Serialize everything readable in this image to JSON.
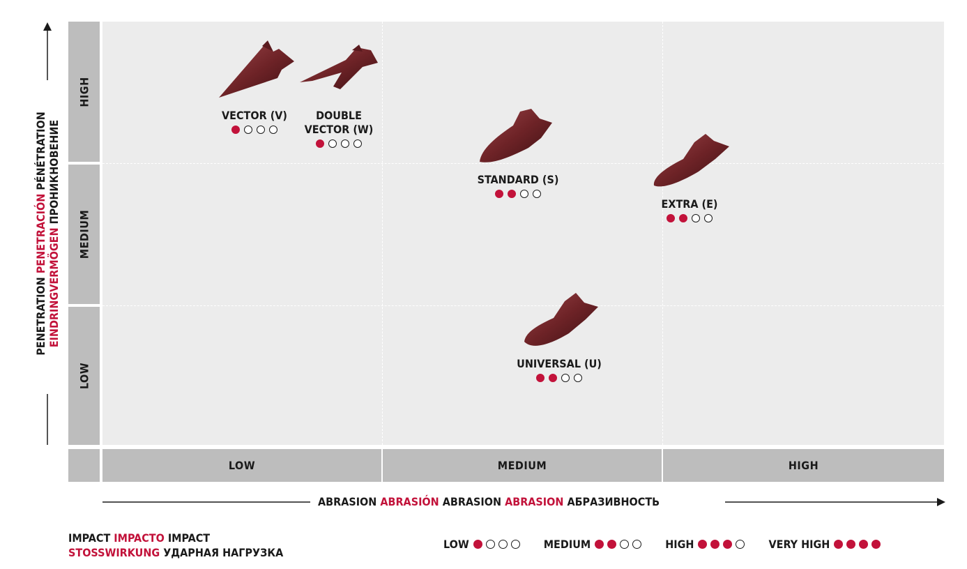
{
  "chart_data": {
    "type": "scatter",
    "title": "",
    "xlabel": [
      "ABRASION",
      "ABRASIÓN",
      "ABRASION",
      "ABRASION",
      "АБРАЗИВНОСТЬ"
    ],
    "ylabel_line1": [
      "PENETRATION",
      "PENETRACIÓN",
      "PÉNÉTRATION"
    ],
    "ylabel_line2": [
      "EINDRINGVERMÖGEN",
      "ПРОНИКНОВЕНИЕ"
    ],
    "x_categories": [
      "LOW",
      "MEDIUM",
      "HIGH"
    ],
    "y_categories": [
      "LOW",
      "MEDIUM",
      "HIGH"
    ],
    "grid": "dashed",
    "points": [
      {
        "label": "VECTOR (V)",
        "abrasion": "LOW",
        "penetration": "HIGH",
        "impact": 1
      },
      {
        "label_lines": [
          "DOUBLE",
          "VECTOR (W)"
        ],
        "abrasion": "LOW",
        "penetration": "HIGH",
        "impact": 1
      },
      {
        "label": "STANDARD (S)",
        "abrasion": "MEDIUM",
        "penetration": "MEDIUM",
        "impact": 2
      },
      {
        "label": "EXTRA (E)",
        "abrasion": "HIGH",
        "penetration": "MEDIUM",
        "impact": 2
      },
      {
        "label": "UNIVERSAL (U)",
        "abrasion": "MEDIUM",
        "penetration": "LOW",
        "impact": 2
      }
    ],
    "impact_legend": {
      "title_line1": [
        "IMPACT",
        "IMPACTO",
        "IMPACT"
      ],
      "title_line2": [
        "STOSSWIRKUNG",
        "УДАРНАЯ НАГРУЗКА"
      ],
      "levels": [
        {
          "label": "LOW",
          "filled": 1
        },
        {
          "label": "MEDIUM",
          "filled": 2
        },
        {
          "label": "HIGH",
          "filled": 3
        },
        {
          "label": "VERY HIGH",
          "filled": 4
        }
      ],
      "max": 4
    },
    "colors": {
      "accent": "#c2123a",
      "tooth": "#7a2a2e",
      "band": "#bdbdbd",
      "plot_bg": "#ececec"
    }
  }
}
